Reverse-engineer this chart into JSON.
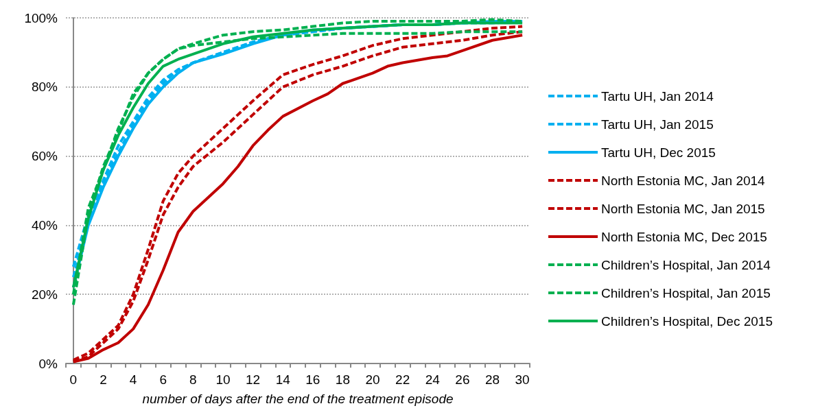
{
  "chart_data": {
    "type": "line",
    "xlabel": "number of days after the end of the treatment episode",
    "x": [
      0,
      1,
      2,
      3,
      4,
      5,
      6,
      7,
      8,
      10,
      12,
      14,
      16,
      18,
      20,
      22,
      24,
      26,
      28,
      30
    ],
    "series": [
      {
        "name": "Tartu UH, Jan 2014",
        "color": "#00b0f0",
        "line_style": "dashed",
        "values": [
          28,
          43,
          53,
          63,
          70,
          77,
          82,
          85,
          87,
          90,
          93,
          95,
          96,
          97,
          97.5,
          98,
          98,
          98.5,
          98.5,
          99
        ]
      },
      {
        "name": "Tartu UH, Jan 2015",
        "color": "#00b0f0",
        "line_style": "dashed",
        "values": [
          25,
          41,
          52,
          61,
          69,
          76,
          81,
          85,
          87,
          90,
          93,
          95,
          96,
          97,
          97.5,
          98,
          98,
          98.5,
          99,
          99
        ]
      },
      {
        "name": "Tartu UH, Dec 2015",
        "color": "#00b0f0",
        "line_style": "solid",
        "values": [
          22,
          40,
          51,
          60,
          68,
          75,
          80,
          84,
          87,
          89.5,
          92.5,
          95,
          96.5,
          97,
          97.5,
          98,
          98,
          98.5,
          99,
          99
        ]
      },
      {
        "name": "North Estonia MC, Jan 2014",
        "color": "#c00000",
        "line_style": "dashed",
        "values": [
          1,
          3,
          7,
          11,
          20,
          33,
          47,
          55,
          60,
          68,
          76,
          83.5,
          86.5,
          89,
          92,
          94,
          95,
          96,
          97,
          97.5
        ]
      },
      {
        "name": "North Estonia MC, Jan 2015",
        "color": "#c00000",
        "line_style": "dashed",
        "values": [
          0.5,
          2,
          6,
          10,
          18,
          30,
          43,
          51,
          57,
          64,
          72,
          80,
          83.5,
          86,
          89,
          91.5,
          92.5,
          93.5,
          95,
          96
        ]
      },
      {
        "name": "North Estonia MC, Dec 2015",
        "color": "#c00000",
        "line_style": "solid",
        "x": [
          0,
          1,
          2,
          3,
          4,
          5,
          6,
          7,
          8,
          10,
          11,
          12,
          13,
          14,
          16,
          17,
          18,
          20,
          21,
          22,
          24,
          25,
          26,
          28,
          30
        ],
        "values": [
          0.5,
          1.5,
          4,
          6,
          10,
          17,
          27,
          38,
          44,
          52,
          57,
          63,
          67.5,
          71.5,
          76,
          78,
          81,
          84,
          86,
          87,
          88.5,
          89,
          90.5,
          93.5,
          95
        ]
      },
      {
        "name": "Children’s Hospital, Jan 2014",
        "color": "#00b050",
        "line_style": "dashed",
        "values": [
          20,
          45,
          56,
          68,
          77,
          84,
          88,
          91,
          92,
          93,
          94,
          94.5,
          95,
          95.5,
          95.5,
          95.5,
          95.5,
          96,
          96,
          96
        ]
      },
      {
        "name": "Children’s Hospital, Jan 2015",
        "color": "#00b050",
        "line_style": "dashed",
        "values": [
          17,
          43,
          57,
          67,
          78,
          84,
          88,
          91,
          92.5,
          95,
          96,
          96.5,
          97.5,
          98.5,
          99,
          99,
          99,
          99,
          99.5,
          99
        ]
      },
      {
        "name": "Children’s Hospital, Dec 2015",
        "color": "#00b050",
        "line_style": "solid",
        "values": [
          22,
          42,
          56,
          66,
          74,
          81,
          86,
          88,
          89.5,
          92.5,
          94.5,
          95.5,
          96.5,
          97,
          97.5,
          98,
          98,
          98.5,
          98.5,
          98.5
        ]
      }
    ],
    "xlim": [
      -0.5,
      30.5
    ],
    "xticks": [
      0,
      2,
      4,
      6,
      8,
      10,
      12,
      14,
      16,
      18,
      20,
      22,
      24,
      26,
      28,
      30,
      {
        "value": -0.5,
        "label": null
      },
      {
        "value": 0.5,
        "label": null
      },
      {
        "value": 1.5,
        "label": null
      },
      {
        "value": 2.5,
        "label": null
      },
      {
        "value": 3.5,
        "label": null
      },
      {
        "value": 4.5,
        "label": null
      },
      {
        "value": 5.5,
        "label": null
      },
      {
        "value": 6.5,
        "label": null
      },
      {
        "value": 7.5,
        "label": null
      },
      {
        "value": 8.5,
        "label": null
      },
      {
        "value": 9.5,
        "label": null
      },
      {
        "value": 10.5,
        "label": null
      },
      {
        "value": 11.5,
        "label": null
      },
      {
        "value": 12.5,
        "label": null
      },
      {
        "value": 13.5,
        "label": null
      },
      {
        "value": 14.5,
        "label": null
      },
      {
        "value": 15.5,
        "label": null
      },
      {
        "value": 16.5,
        "label": null
      },
      {
        "value": 17.5,
        "label": null
      },
      {
        "value": 18.5,
        "label": null
      },
      {
        "value": 19.5,
        "label": null
      },
      {
        "value": 20.5,
        "label": null
      },
      {
        "value": 21.5,
        "label": null
      },
      {
        "value": 22.5,
        "label": null
      },
      {
        "value": 23.5,
        "label": null
      },
      {
        "value": 24.5,
        "label": null
      },
      {
        "value": 25.5,
        "label": null
      },
      {
        "value": 26.5,
        "label": null
      },
      {
        "value": 27.5,
        "label": null
      },
      {
        "value": 28.5,
        "label": null
      },
      {
        "value": 29.5,
        "label": null
      },
      {
        "value": 30.5,
        "label": null
      }
    ],
    "ylim": [
      0,
      100
    ],
    "yticks": [
      {
        "value": 0,
        "label": "0%"
      },
      {
        "value": 20,
        "label": "20%"
      },
      {
        "value": 40,
        "label": "40%"
      },
      {
        "value": 60,
        "label": "60%"
      },
      {
        "value": 80,
        "label": "80%"
      },
      {
        "value": 100,
        "label": "100%"
      }
    ],
    "grid": "y",
    "legend": "right",
    "marker": "none"
  }
}
